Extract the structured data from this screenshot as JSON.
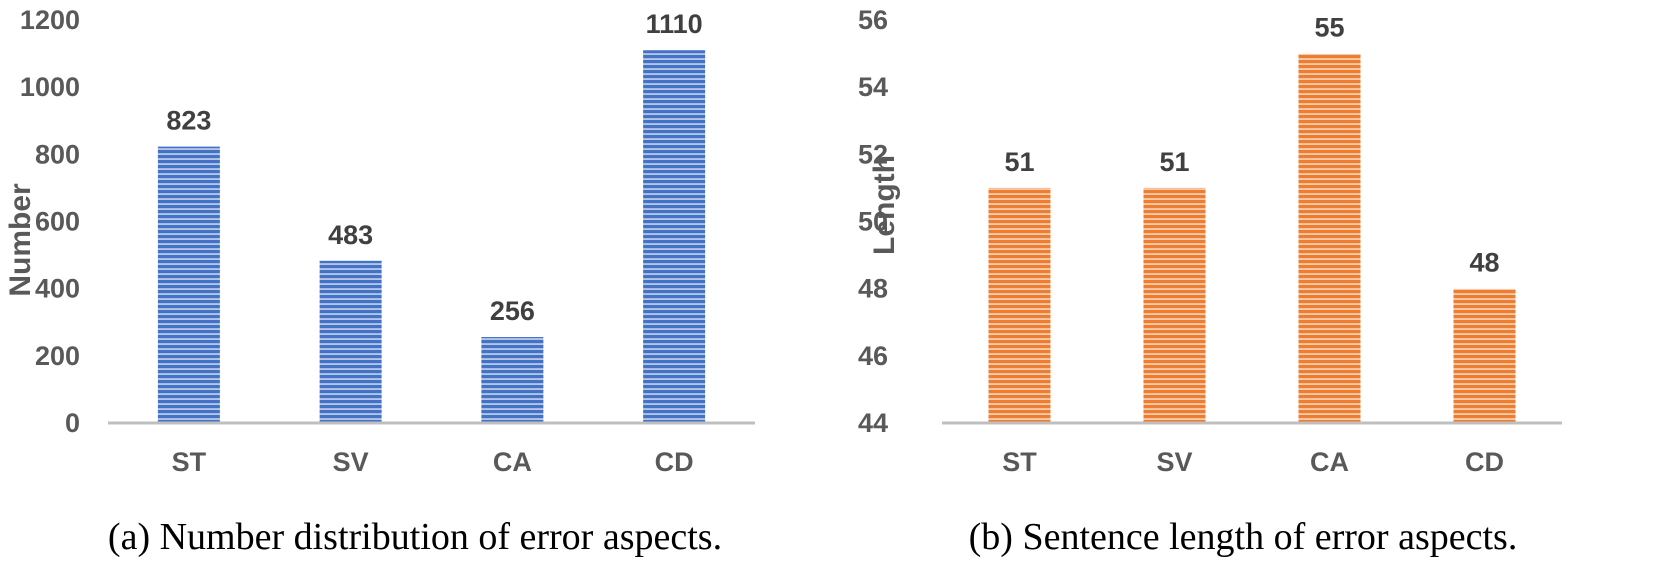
{
  "colors": {
    "blue_bar": "#4472c4",
    "orange_bar": "#ed7d31",
    "stripe": "#ffffff"
  },
  "chart_data": [
    {
      "type": "bar",
      "caption": "(a) Number distribution of error aspects.",
      "ylabel": "Number",
      "xlabel": "",
      "categories": [
        "ST",
        "SV",
        "CA",
        "CD"
      ],
      "values": [
        823,
        483,
        256,
        1110
      ],
      "ylim": [
        0,
        1200
      ],
      "yticks": [
        0,
        200,
        400,
        600,
        800,
        1000,
        1200
      ],
      "data_labels": true,
      "bar_color": "#4472c4",
      "bar_pattern": "horizontal-stripes",
      "grid": false
    },
    {
      "type": "bar",
      "caption": "(b) Sentence length of error aspects.",
      "ylabel": "Length",
      "xlabel": "",
      "categories": [
        "ST",
        "SV",
        "CA",
        "CD"
      ],
      "values": [
        51,
        51,
        55,
        48
      ],
      "ylim": [
        44,
        56
      ],
      "yticks": [
        44,
        46,
        48,
        50,
        52,
        54,
        56
      ],
      "data_labels": true,
      "bar_color": "#ed7d31",
      "bar_pattern": "horizontal-stripes",
      "grid": false
    }
  ]
}
